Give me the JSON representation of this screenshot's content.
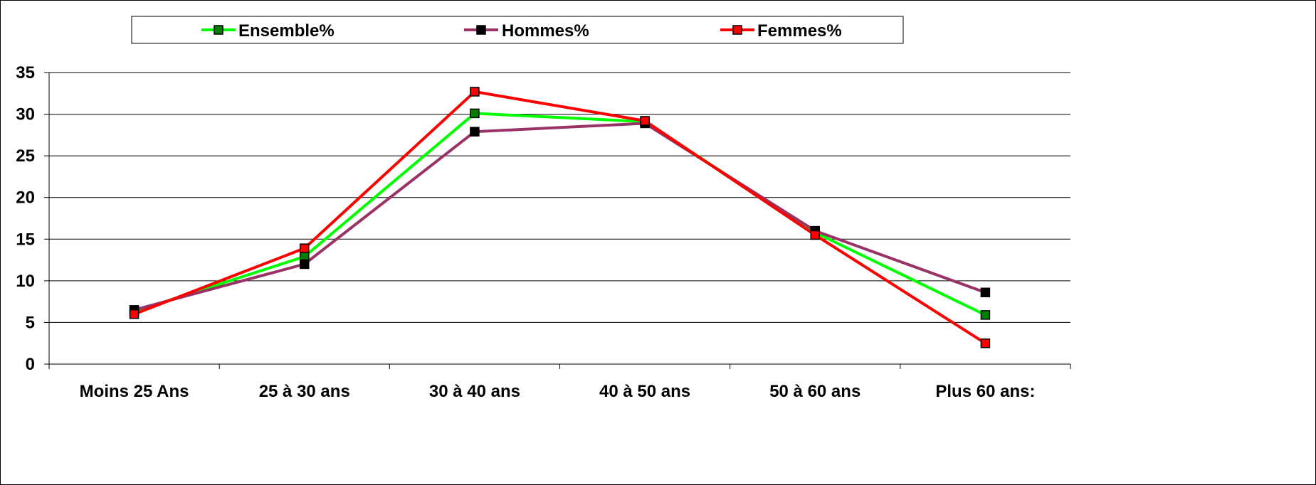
{
  "chart_data": {
    "type": "line",
    "categories": [
      "Moins 25 Ans",
      "25 à 30 ans",
      "30 à 40 ans",
      "40 à 50 ans",
      "50 à 60 ans",
      "Plus 60 ans:"
    ],
    "series": [
      {
        "name": "Ensemble%",
        "values": [
          6.3,
          12.9,
          30.1,
          29.1,
          15.8,
          5.9
        ],
        "color": "#00ff00",
        "marker_color": "#008000"
      },
      {
        "name": "Hommes%",
        "values": [
          6.5,
          12.0,
          27.9,
          28.9,
          16.0,
          8.6
        ],
        "color": "#993366",
        "marker_color": "#000000"
      },
      {
        "name": "Femmes%",
        "values": [
          6.0,
          13.9,
          32.7,
          29.2,
          15.5,
          2.5
        ],
        "color": "#ff0000",
        "marker_color": "#ff0000"
      }
    ],
    "y_ticks": [
      "0",
      "5",
      "10",
      "15",
      "20",
      "25",
      "30",
      "35"
    ],
    "ylim": [
      0,
      35
    ],
    "grid": true,
    "legend_position": "top"
  }
}
